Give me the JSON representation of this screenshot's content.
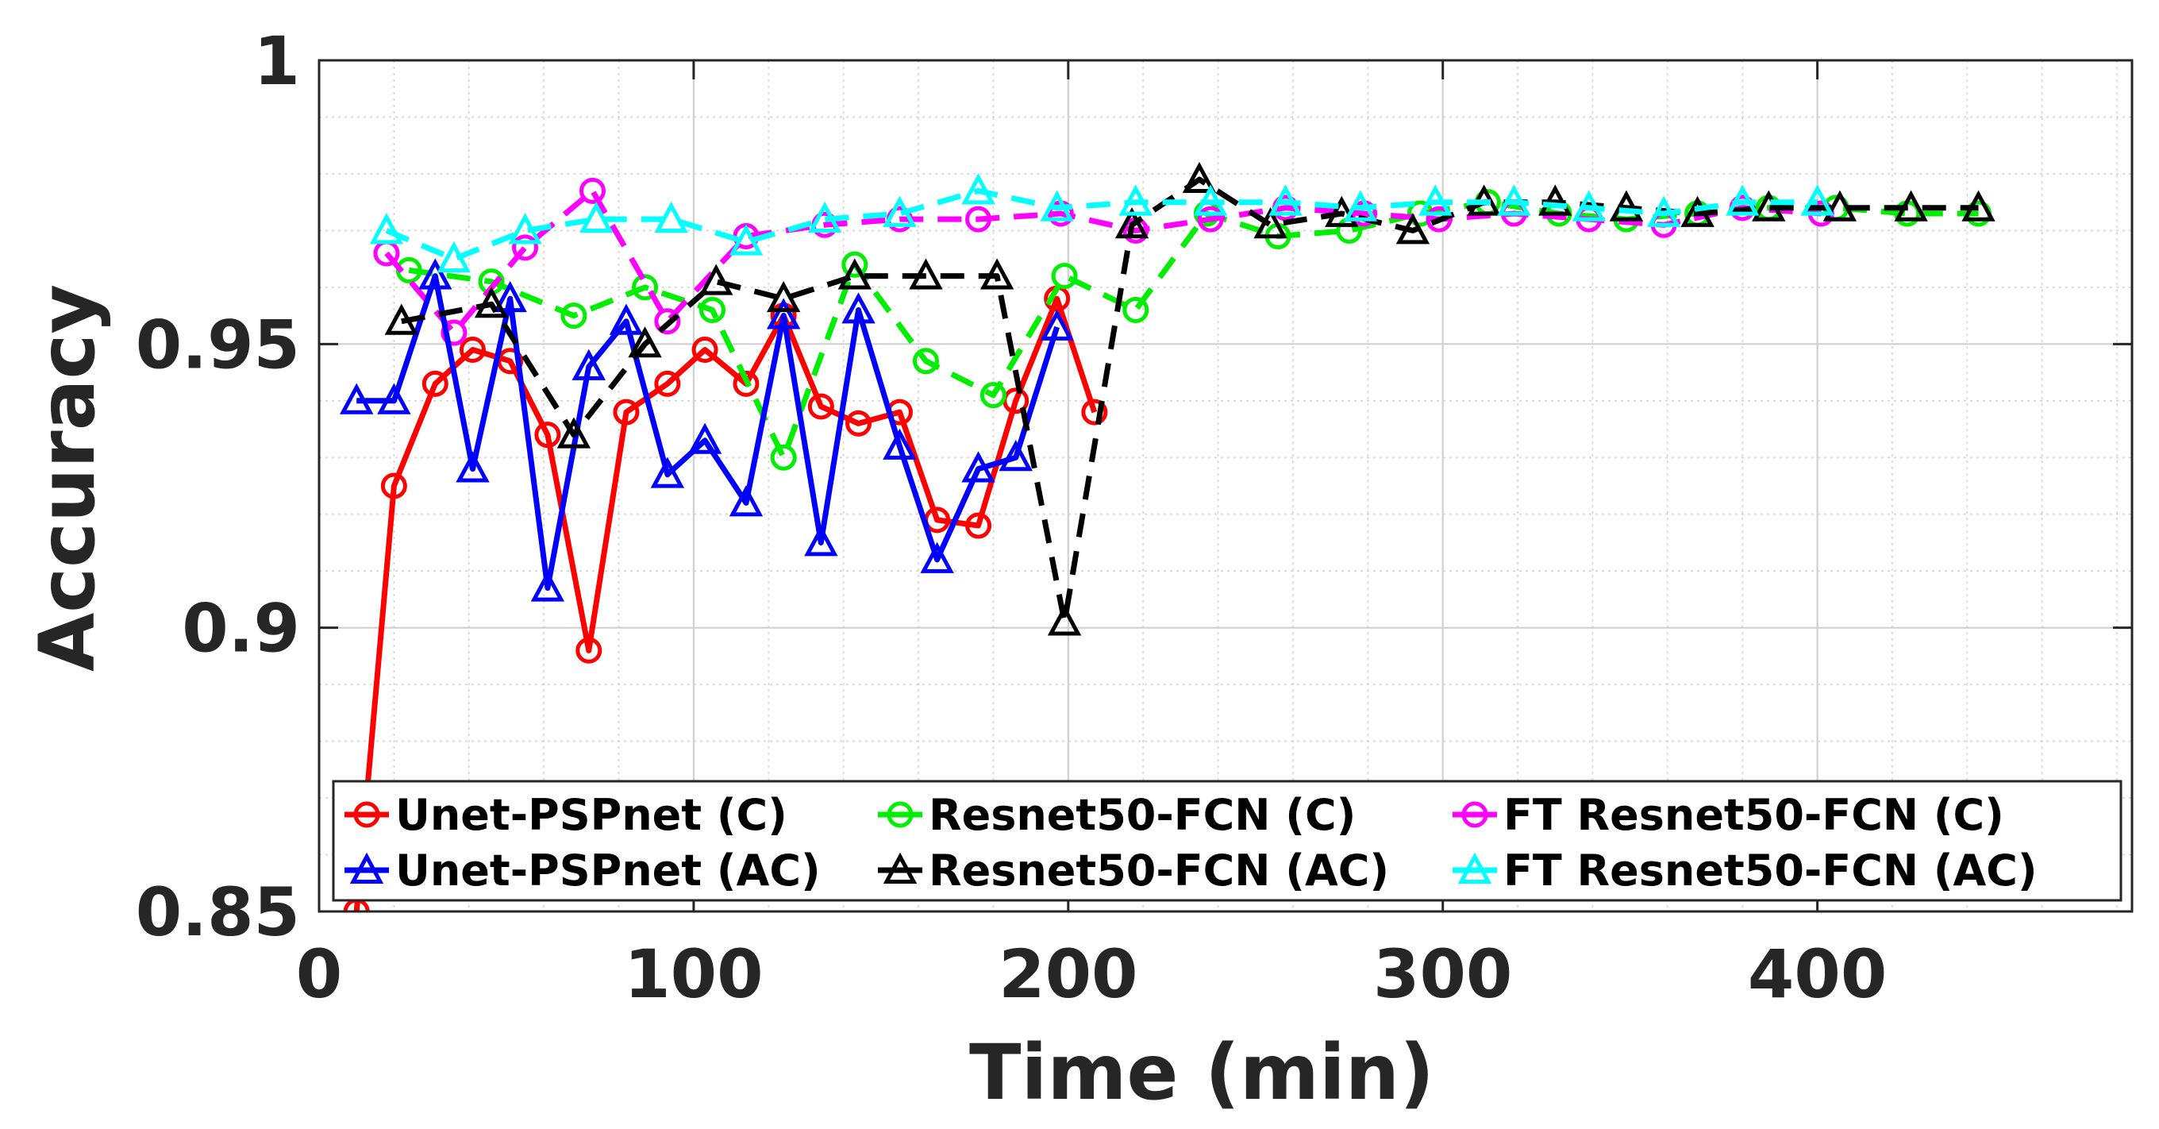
{
  "chart_data": {
    "type": "line",
    "title": "",
    "xlabel": "Time (min)",
    "ylabel": "Accuracy",
    "xlim": [
      0,
      484
    ],
    "ylim": [
      0.85,
      1
    ],
    "xticks": [
      0,
      100,
      200,
      300,
      400
    ],
    "xtick_labels": [
      "0",
      "100",
      "200",
      "300",
      "400"
    ],
    "yticks": [
      0.85,
      0.9,
      0.95,
      1
    ],
    "ytick_labels": [
      "0.85",
      "0.9",
      "0.95",
      "1"
    ],
    "grid": true,
    "minor_grid": true,
    "legend_position": "bottom",
    "series": [
      {
        "name": "Unet-PSPnet (C)",
        "color": "#ff0000",
        "dash": "solid",
        "marker": "circle",
        "x": [
          10,
          20,
          31,
          41,
          51,
          61,
          72,
          82,
          93,
          103,
          114,
          124,
          134,
          144,
          155,
          165,
          176,
          186,
          197,
          207
        ],
        "y": [
          0.85,
          0.925,
          0.943,
          0.949,
          0.947,
          0.934,
          0.896,
          0.938,
          0.943,
          0.949,
          0.943,
          0.955,
          0.939,
          0.936,
          0.938,
          0.919,
          0.918,
          0.94,
          0.958,
          0.938
        ]
      },
      {
        "name": "Resnet50-FCN (C)",
        "color": "#00ee00",
        "dash": "dashed",
        "marker": "circle",
        "x": [
          24,
          46,
          68,
          87,
          105,
          124,
          143,
          162,
          180,
          199,
          218,
          237,
          256,
          275,
          294,
          312,
          331,
          349,
          368,
          387,
          405,
          424,
          443
        ],
        "y": [
          0.963,
          0.961,
          0.955,
          0.96,
          0.956,
          0.93,
          0.964,
          0.947,
          0.941,
          0.962,
          0.956,
          0.973,
          0.969,
          0.97,
          0.973,
          0.975,
          0.973,
          0.972,
          0.973,
          0.974,
          0.974,
          0.973,
          0.973
        ]
      },
      {
        "name": "FT Resnet50-FCN (C)",
        "color": "#ff00ff",
        "dash": "dashed",
        "marker": "circle",
        "x": [
          18,
          36,
          55,
          73,
          93,
          114,
          135,
          155,
          176,
          198,
          218,
          238,
          258,
          279,
          299,
          319,
          339,
          359,
          380,
          401
        ],
        "y": [
          0.966,
          0.952,
          0.967,
          0.977,
          0.954,
          0.969,
          0.971,
          0.972,
          0.972,
          0.973,
          0.97,
          0.972,
          0.974,
          0.973,
          0.972,
          0.973,
          0.972,
          0.971,
          0.974,
          0.973
        ]
      },
      {
        "name": "Unet-PSPnet (AC)",
        "color": "#0000ff",
        "dash": "solid",
        "marker": "triangle",
        "x": [
          10,
          20,
          31,
          41,
          51,
          61,
          72,
          82,
          93,
          103,
          114,
          124,
          134,
          144,
          155,
          165,
          176,
          186,
          197
        ],
        "y": [
          0.94,
          0.94,
          0.962,
          0.928,
          0.958,
          0.907,
          0.946,
          0.954,
          0.927,
          0.933,
          0.922,
          0.955,
          0.915,
          0.956,
          0.932,
          0.912,
          0.928,
          0.93,
          0.953
        ]
      },
      {
        "name": "Resnet50-FCN (AC)",
        "color": "#000000",
        "dash": "dashed",
        "marker": "triangle",
        "x": [
          22,
          46,
          68,
          87,
          106,
          124,
          143,
          162,
          181,
          199,
          217,
          235,
          254,
          273,
          292,
          311,
          330,
          349,
          368,
          387,
          406,
          425,
          443
        ],
        "y": [
          0.954,
          0.957,
          0.934,
          0.95,
          0.961,
          0.958,
          0.962,
          0.962,
          0.962,
          0.901,
          0.971,
          0.979,
          0.971,
          0.973,
          0.97,
          0.975,
          0.975,
          0.974,
          0.973,
          0.974,
          0.974,
          0.974,
          0.974
        ]
      },
      {
        "name": "FT Resnet50-FCN (AC)",
        "color": "#00ffff",
        "dash": "dashed",
        "marker": "triangle",
        "x": [
          18,
          36,
          55,
          74,
          94,
          114,
          135,
          155,
          176,
          197,
          218,
          238,
          258,
          278,
          298,
          319,
          339,
          359,
          380,
          400
        ],
        "y": [
          0.97,
          0.965,
          0.97,
          0.972,
          0.972,
          0.968,
          0.972,
          0.973,
          0.977,
          0.974,
          0.975,
          0.975,
          0.975,
          0.974,
          0.975,
          0.975,
          0.974,
          0.973,
          0.975,
          0.975
        ]
      }
    ],
    "legend_order": [
      0,
      1,
      2,
      3,
      4,
      5
    ]
  }
}
